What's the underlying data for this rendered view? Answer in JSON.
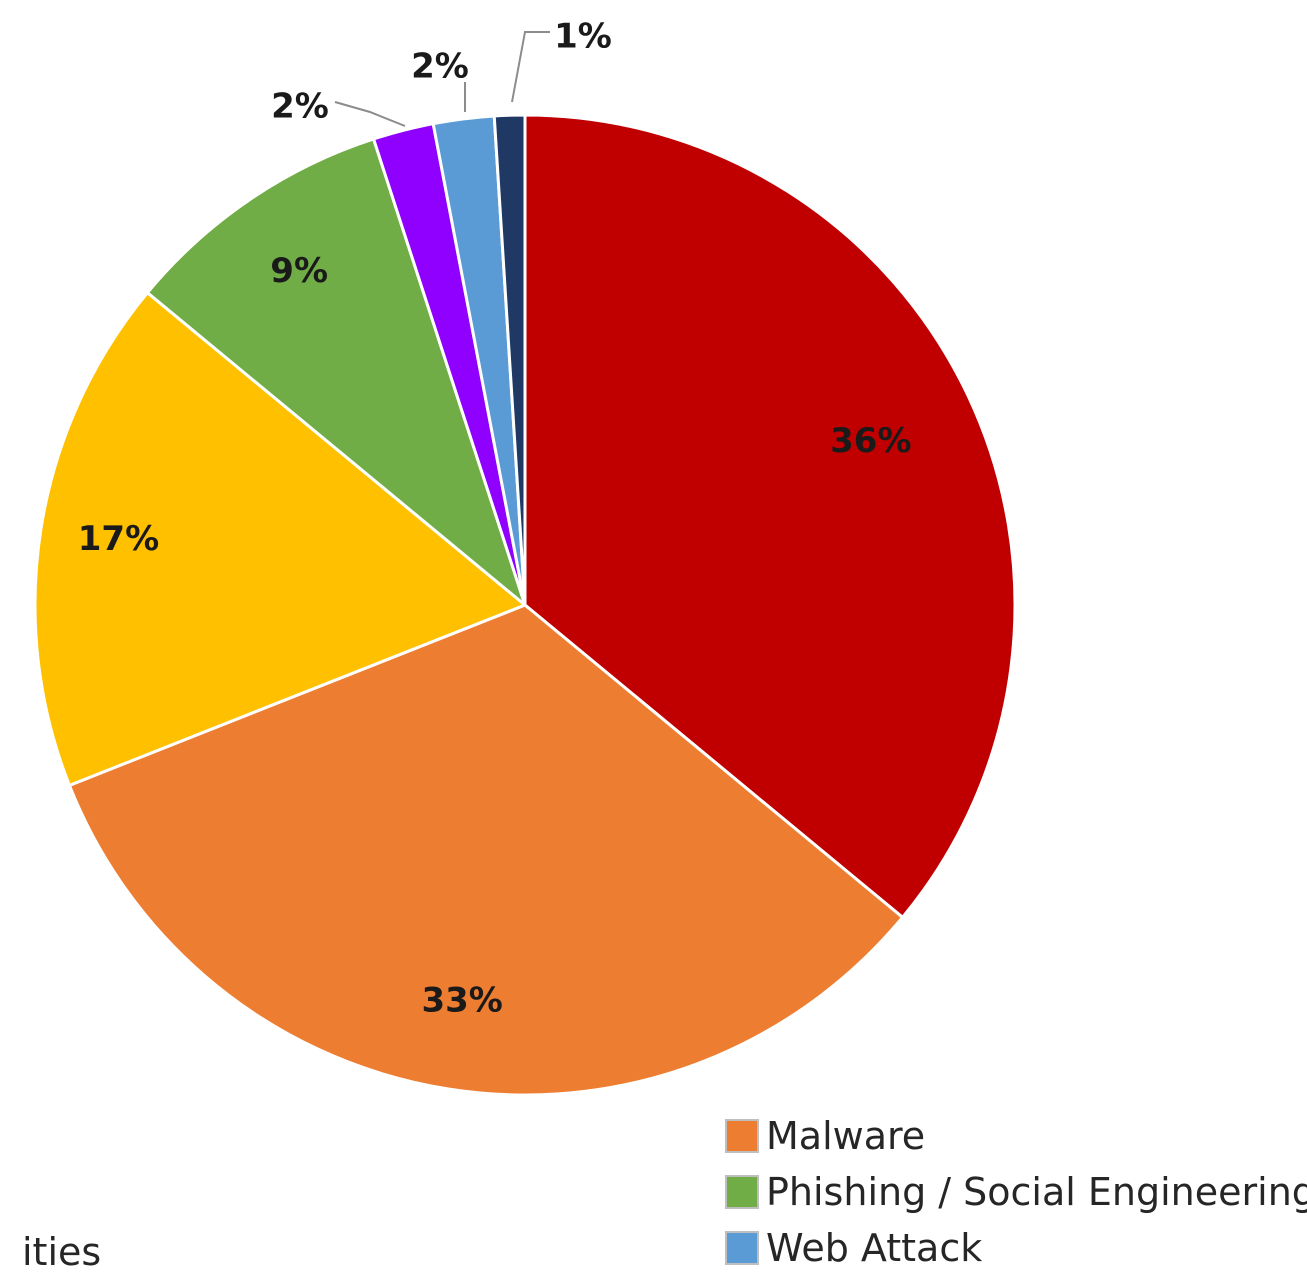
{
  "chart_data": {
    "type": "pie",
    "slices": [
      {
        "value": 36,
        "label": "36%",
        "color": "#c00000"
      },
      {
        "value": 33,
        "label": "33%",
        "color": "#ed7d31"
      },
      {
        "value": 17,
        "label": "17%",
        "color": "#ffc000"
      },
      {
        "value": 9,
        "label": "9%",
        "color": "#70ad47"
      },
      {
        "value": 2,
        "label": "2%",
        "color": "#8f00ff"
      },
      {
        "value": 2,
        "label": "2%",
        "color": "#5b9bd5"
      },
      {
        "value": 1,
        "label": "1%",
        "color": "#203864"
      }
    ],
    "legend": [
      {
        "label": "Malware",
        "color": "#ed7d31"
      },
      {
        "label": "Phishing / Social Engineering",
        "color": "#70ad47"
      },
      {
        "label": "Web Attack",
        "color": "#5b9bd5"
      }
    ],
    "partial_legend_text": "ities"
  }
}
